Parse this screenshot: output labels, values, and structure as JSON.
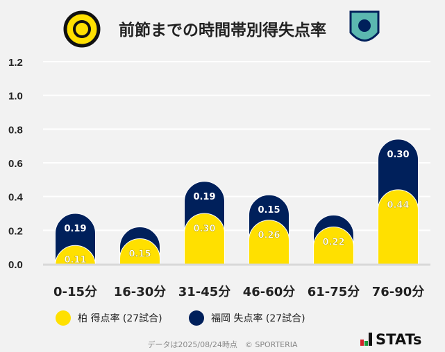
{
  "title": "前節までの時間帯別得失点率",
  "legend": [
    {
      "label": "柏 得点率 (27試合)",
      "color": "#FFE000"
    },
    {
      "label": "福岡 失点率 (27試合)",
      "color": "#00205B"
    }
  ],
  "footer": "データは2025/08/24時点　© SPORTERIA",
  "brand": "STATs",
  "logos": {
    "left": "KASHIWA REYSOL",
    "right": "AVISPA FUKUOKA"
  },
  "chart_data": {
    "type": "bar",
    "stacked": true,
    "categories": [
      "0-15分",
      "16-30分",
      "31-45分",
      "46-60分",
      "61-75分",
      "76-90分"
    ],
    "series": [
      {
        "name": "柏 得点率 (27試合)",
        "values": [
          0.11,
          0.15,
          0.3,
          0.26,
          0.22,
          0.44
        ],
        "color": "#FFE000",
        "labels": [
          "0.11",
          "0.15",
          "0.30",
          "0.26",
          "0.22",
          "0.44"
        ]
      },
      {
        "name": "福岡 失点率 (27試合)",
        "values": [
          0.19,
          0.07,
          0.19,
          0.15,
          0.07,
          0.3
        ],
        "color": "#00205B",
        "labels": [
          "0.19",
          "",
          "0.19",
          "0.15",
          "",
          "0.30"
        ]
      }
    ],
    "yticks": [
      "0.0",
      "0.2",
      "0.4",
      "0.6",
      "0.8",
      "1.0",
      "1.2"
    ],
    "ylim": [
      0,
      1.2
    ],
    "grid": true,
    "legend_position": "bottom"
  }
}
